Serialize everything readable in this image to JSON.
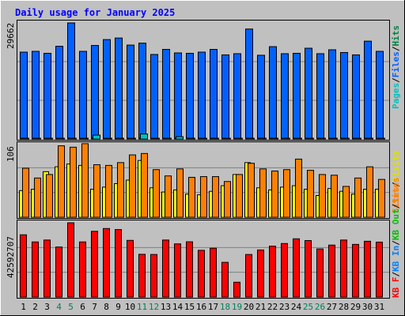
{
  "title": "Daily usage for January 2025",
  "colors": {
    "background": "#c0c0c0",
    "title": "#0000ff",
    "pages": "#00c0c0",
    "files": "#0060ff",
    "hits": "#008040",
    "visits": "#ffff00",
    "sites": "#ff8000",
    "kbf": "#ff0000",
    "kbin": "#0080ff",
    "kbout": "#00c000",
    "weekend_day": "#00805a",
    "weekday_day": "#000000"
  },
  "chart_data": [
    {
      "type": "bar",
      "panel": "hits",
      "max_label": "29662",
      "right_labels": [
        "Pages",
        "Files",
        "Hits"
      ],
      "ylim": [
        0,
        29662
      ],
      "categories": [
        "1",
        "2",
        "3",
        "4",
        "5",
        "6",
        "7",
        "8",
        "9",
        "10",
        "11",
        "12",
        "13",
        "14",
        "15",
        "16",
        "17",
        "18",
        "19",
        "20",
        "21",
        "22",
        "23",
        "24",
        "25",
        "26",
        "27",
        "28",
        "29",
        "30",
        "31"
      ],
      "series": [
        {
          "name": "Hits",
          "values": [
            22200,
            22400,
            21900,
            23700,
            29662,
            22400,
            23900,
            25400,
            25800,
            24000,
            24500,
            21600,
            22900,
            22000,
            21900,
            22200,
            22900,
            21500,
            21800,
            28100,
            21400,
            23600,
            21800,
            21900,
            23200,
            21800,
            22800,
            22100,
            21500,
            25000,
            22400
          ]
        },
        {
          "name": "Files",
          "values": [
            160,
            160,
            160,
            160,
            160,
            160,
            160,
            160,
            160,
            160,
            160,
            160,
            160,
            160,
            160,
            160,
            160,
            160,
            160,
            160,
            160,
            160,
            160,
            160,
            160,
            160,
            160,
            160,
            160,
            160,
            160
          ]
        },
        {
          "name": "Pages",
          "values": [
            160,
            160,
            160,
            160,
            160,
            160,
            1000,
            160,
            160,
            160,
            1300,
            160,
            160,
            600,
            160,
            160,
            160,
            160,
            160,
            160,
            160,
            160,
            160,
            160,
            160,
            160,
            160,
            160,
            160,
            160,
            160
          ]
        }
      ]
    },
    {
      "type": "bar",
      "panel": "visits",
      "max_label": "106",
      "right_labels": [
        "Sites",
        "Visits"
      ],
      "ylim": [
        0,
        106
      ],
      "categories": [
        "1",
        "2",
        "3",
        "4",
        "5",
        "6",
        "7",
        "8",
        "9",
        "10",
        "11",
        "12",
        "13",
        "14",
        "15",
        "16",
        "17",
        "18",
        "19",
        "20",
        "21",
        "22",
        "23",
        "24",
        "25",
        "26",
        "27",
        "28",
        "29",
        "30",
        "31"
      ],
      "series": [
        {
          "name": "Visits",
          "values": [
            38,
            40,
            65,
            72,
            76,
            74,
            40,
            43,
            48,
            53,
            81,
            42,
            36,
            39,
            33,
            32,
            37,
            45,
            61,
            78,
            42,
            39,
            43,
            45,
            40,
            31,
            41,
            37,
            33,
            40,
            40
          ]
        },
        {
          "name": "Sites",
          "values": [
            70,
            56,
            61,
            102,
            100,
            105,
            75,
            74,
            78,
            89,
            91,
            68,
            59,
            69,
            57,
            58,
            58,
            51,
            61,
            77,
            69,
            66,
            68,
            83,
            67,
            61,
            60,
            44,
            56,
            72,
            54
          ]
        }
      ]
    },
    {
      "type": "bar",
      "panel": "kbytes",
      "max_label": "42592707",
      "right_labels": [
        "KB F",
        "KB In",
        "KB Out",
        "Sites"
      ],
      "ylim": [
        0,
        42592707
      ],
      "categories": [
        "1",
        "2",
        "3",
        "4",
        "5",
        "6",
        "7",
        "8",
        "9",
        "10",
        "11",
        "12",
        "13",
        "14",
        "15",
        "16",
        "17",
        "18",
        "19",
        "20",
        "21",
        "22",
        "23",
        "24",
        "25",
        "26",
        "27",
        "28",
        "29",
        "30",
        "31"
      ],
      "series": [
        {
          "name": "KB F",
          "values": [
            35700000,
            31600000,
            32700000,
            28700000,
            42592707,
            31600000,
            37700000,
            39300000,
            38700000,
            32500000,
            24500000,
            24400000,
            32700000,
            30500000,
            31700000,
            26800000,
            28000000,
            19900000,
            8500000,
            24400000,
            27000000,
            29200000,
            30700000,
            33400000,
            32400000,
            27600000,
            29800000,
            32700000,
            30200000,
            32000000,
            31500000
          ]
        }
      ]
    }
  ]
}
